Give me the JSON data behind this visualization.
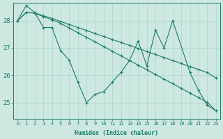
{
  "xlabel": "Humidex (Indice chaleur)",
  "bg_color": "#cce8e0",
  "grid_color": "#b0d4cc",
  "line_color": "#1a7a6a",
  "xlim": [
    -0.5,
    23.5
  ],
  "ylim": [
    24.4,
    28.65
  ],
  "yticks": [
    25,
    26,
    27,
    28
  ],
  "xticks": [
    0,
    1,
    2,
    3,
    4,
    5,
    6,
    7,
    8,
    9,
    10,
    11,
    12,
    13,
    14,
    15,
    16,
    17,
    18,
    19,
    20,
    21,
    22,
    23
  ],
  "series": [
    [
      28.0,
      28.55,
      28.3,
      27.75,
      27.75,
      26.9,
      26.55,
      25.75,
      25.0,
      25.3,
      25.4,
      25.75,
      26.1,
      26.55,
      27.25,
      26.35,
      27.65,
      27.0,
      28.0,
      null,
      26.1,
      25.45,
      24.9,
      24.7
    ],
    [
      28.0,
      28.3,
      28.28,
      28.18,
      28.08,
      27.97,
      27.86,
      27.75,
      27.64,
      27.53,
      27.42,
      27.31,
      27.2,
      27.09,
      26.98,
      26.87,
      26.76,
      26.65,
      26.54,
      26.43,
      26.32,
      26.21,
      26.1,
      25.9
    ],
    [
      28.0,
      28.3,
      28.27,
      28.15,
      28.03,
      27.9,
      27.73,
      27.56,
      27.39,
      27.22,
      27.05,
      26.88,
      26.71,
      26.54,
      26.37,
      26.2,
      26.03,
      25.86,
      25.69,
      25.52,
      25.35,
      25.18,
      25.01,
      24.7
    ]
  ]
}
